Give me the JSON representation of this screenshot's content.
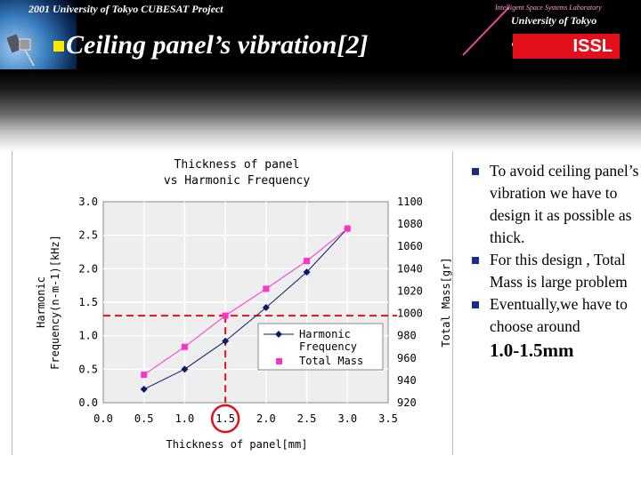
{
  "header": {
    "project_line": "2001 University of Tokyo CUBESAT Project",
    "title": "Ceiling panel’s vibration[2]",
    "logo_lab": "Intelligent Space Systems Laboratory",
    "logo_university": "University of Tokyo",
    "logo_issl": "ISSL"
  },
  "bullets": [
    {
      "text": "To avoid ceiling panel’s vibration we have to design it as possible as thick."
    },
    {
      "text": "For this design , Total Mass is large problem"
    },
    {
      "text": "Eventually,we have to choose around",
      "highlight": "1.0-1.5mm"
    }
  ],
  "chart_data": {
    "type": "line",
    "title": "Thickness of panel\nvs Harmonic Frequency",
    "title_lines": [
      "Thickness of panel",
      "vs Harmonic Frequency"
    ],
    "xlabel": "Thickness of panel[mm]",
    "ylabel_left": "Harmonic Frequency(n-m-1)[kHz]",
    "ylabel_left_lines": [
      "Harmonic",
      "Frequency(n-m-1)[kHz]"
    ],
    "ylabel_right": "Total Mass[gr]",
    "x_ticks": [
      "0.0",
      "0.5",
      "1.0",
      "1.5",
      "2.0",
      "2.5",
      "3.0",
      "3.5"
    ],
    "y_left_ticks": [
      "0.0",
      "0.5",
      "1.0",
      "1.5",
      "2.0",
      "2.5",
      "3.0"
    ],
    "y_right_ticks": [
      "920",
      "940",
      "960",
      "980",
      "1000",
      "1020",
      "1040",
      "1060",
      "1080",
      "1100"
    ],
    "xlim": [
      0,
      3.5
    ],
    "ylim_left": [
      0,
      3.0
    ],
    "ylim_right": [
      920,
      1100
    ],
    "grid": true,
    "legend_position": "lower-right",
    "series": [
      {
        "name": "Harmonic Frequency",
        "axis": "left",
        "color": "#0a1a6a",
        "marker": "diamond",
        "x": [
          0.5,
          1.0,
          1.5,
          2.0,
          2.5,
          3.0
        ],
        "values": [
          0.2,
          0.5,
          0.92,
          1.42,
          1.95,
          2.6
        ]
      },
      {
        "name": "Total Mass",
        "axis": "right",
        "color": "#ff33cc",
        "marker": "square",
        "x": [
          0.5,
          1.0,
          1.5,
          2.0,
          2.5,
          3.0
        ],
        "values": [
          945,
          970,
          998,
          1022,
          1047,
          1076
        ]
      }
    ],
    "annotations": {
      "threshold_y_left": 1.3,
      "threshold_x": 1.5,
      "circle_tick": "1.5",
      "dash_color": "#e3101c"
    }
  },
  "colors": {
    "bullet": "#1a2a8a",
    "title_bullet": "#ffe800",
    "plot_background": "#eeeeee"
  }
}
